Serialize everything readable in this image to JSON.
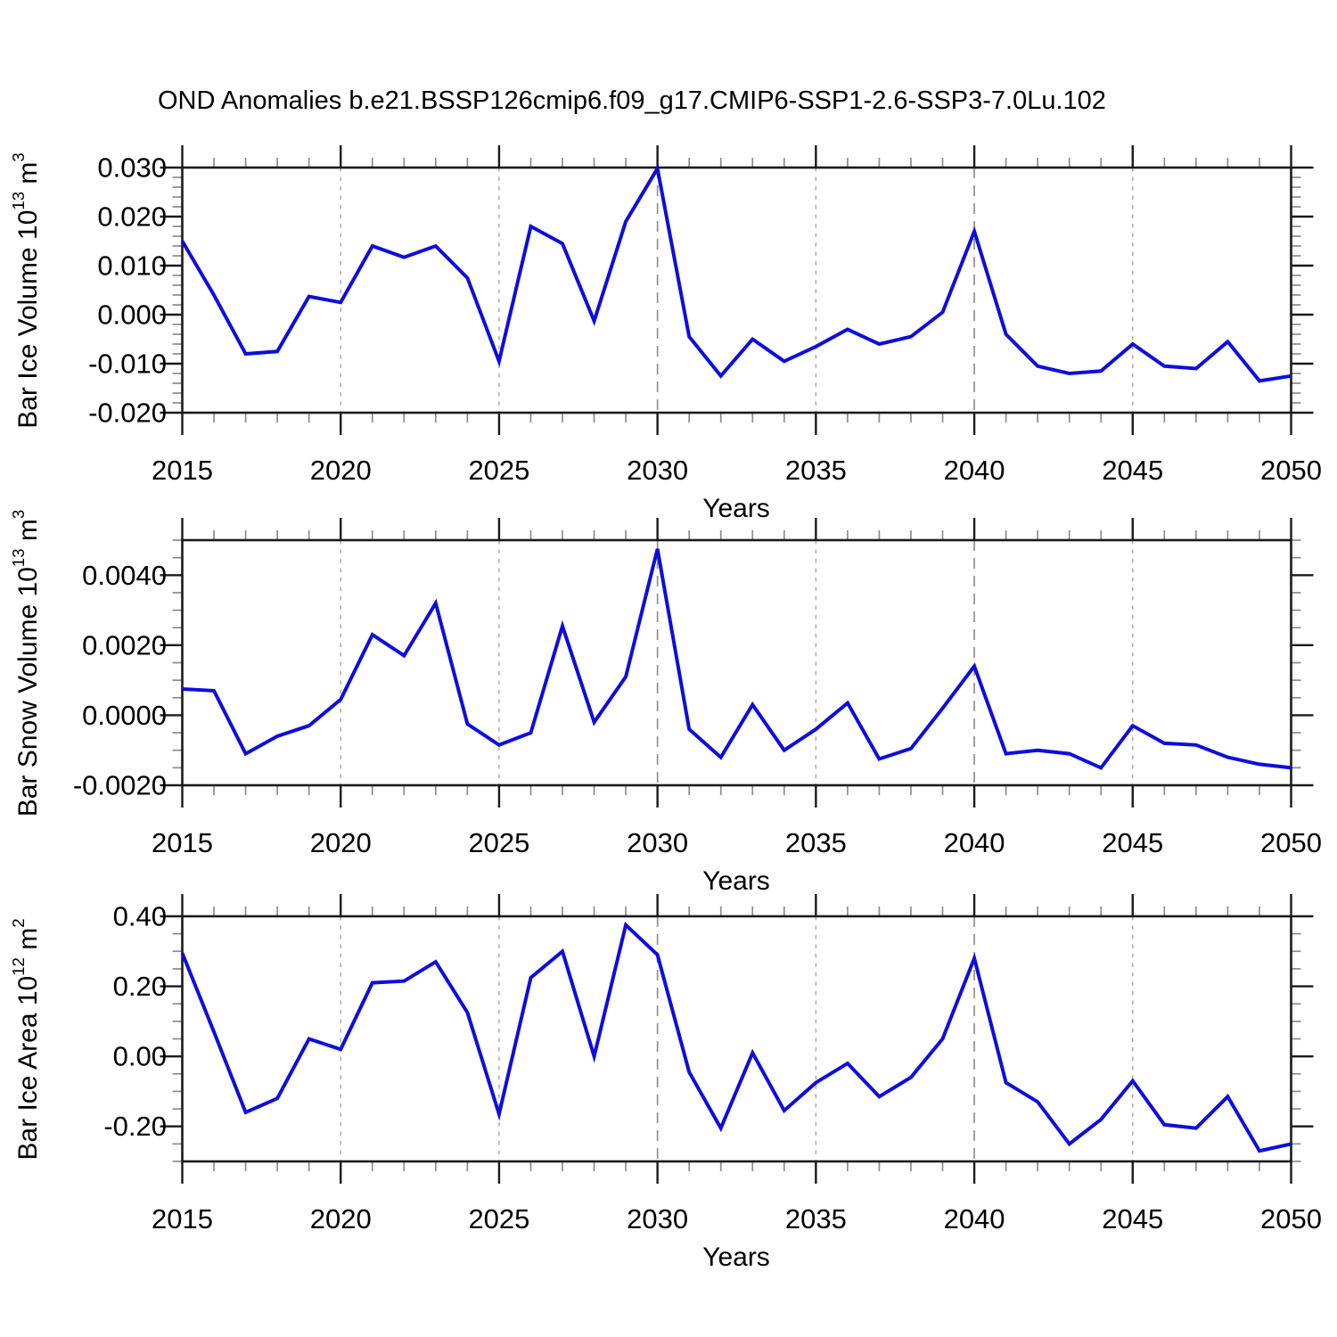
{
  "title": "OND Anomalies b.e21.BSSP126cmip6.f09_g17.CMIP6-SSP1-2.6-SSP3-7.0Lu.102",
  "colors": {
    "line": "#0d0ddf",
    "axis": "#1a1a1a",
    "minor_tick": "#8c8c8c",
    "gridline_short": "#a6a6a6",
    "gridline_long": "#8a8a8a",
    "text": "#000000",
    "background": "#ffffff"
  },
  "x_axis": {
    "label": "Years",
    "range": [
      2015,
      2050
    ],
    "minor_step": 1,
    "major_ticks": [
      {
        "value": 2015,
        "label": "2015"
      },
      {
        "value": 2020,
        "label": "2020"
      },
      {
        "value": 2025,
        "label": "2025"
      },
      {
        "value": 2030,
        "label": "2030"
      },
      {
        "value": 2035,
        "label": "2035"
      },
      {
        "value": 2040,
        "label": "2040"
      },
      {
        "value": 2045,
        "label": "2045"
      },
      {
        "value": 2050,
        "label": "2050"
      }
    ],
    "gridlines": [
      {
        "year": 2020,
        "dash": "short"
      },
      {
        "year": 2025,
        "dash": "short"
      },
      {
        "year": 2030,
        "dash": "long"
      },
      {
        "year": 2035,
        "dash": "short"
      },
      {
        "year": 2040,
        "dash": "long"
      },
      {
        "year": 2045,
        "dash": "short"
      }
    ],
    "years": [
      2015,
      2016,
      2017,
      2018,
      2019,
      2020,
      2021,
      2022,
      2023,
      2024,
      2025,
      2026,
      2027,
      2028,
      2029,
      2030,
      2031,
      2032,
      2033,
      2034,
      2035,
      2036,
      2037,
      2038,
      2039,
      2040,
      2041,
      2042,
      2043,
      2044,
      2045,
      2046,
      2047,
      2048,
      2049,
      2050
    ]
  },
  "chart_data": [
    {
      "type": "line",
      "ylabel": {
        "text": "Bar Ice Volume 10",
        "exp": "13",
        "unit": " m",
        "unit_exp": "3"
      },
      "xlabel": "Years",
      "y_box": [
        -0.02,
        0.03
      ],
      "y_minor_step": 0.002,
      "y_major_ticks": [
        {
          "value": 0.03,
          "label": "0.030"
        },
        {
          "value": 0.02,
          "label": "0.020"
        },
        {
          "value": 0.01,
          "label": "0.010"
        },
        {
          "value": 0.0,
          "label": "0.000"
        },
        {
          "value": -0.01,
          "label": "-0.010"
        },
        {
          "value": -0.02,
          "label": "-0.020"
        }
      ],
      "values": [
        0.015,
        0.004,
        -0.008,
        -0.0075,
        0.0037,
        0.0025,
        0.014,
        0.0117,
        0.014,
        0.0075,
        -0.0095,
        0.018,
        0.0145,
        -0.0013,
        0.019,
        0.0298,
        -0.0045,
        -0.0125,
        -0.005,
        -0.0095,
        -0.0065,
        -0.003,
        -0.006,
        -0.0045,
        0.0005,
        0.017,
        -0.004,
        -0.0105,
        -0.012,
        -0.0115,
        -0.006,
        -0.0105,
        -0.011,
        -0.0055,
        -0.0135,
        -0.0125
      ]
    },
    {
      "type": "line",
      "ylabel": {
        "text": "Bar Snow Volume 10",
        "exp": "13",
        "unit": " m",
        "unit_exp": "3"
      },
      "xlabel": "Years",
      "y_box": [
        -0.002,
        0.005
      ],
      "y_minor_step": 0.0005,
      "y_major_ticks": [
        {
          "value": 0.004,
          "label": "0.0040"
        },
        {
          "value": 0.002,
          "label": "0.0020"
        },
        {
          "value": 0.0,
          "label": "0.0000"
        },
        {
          "value": -0.002,
          "label": "-0.0020"
        }
      ],
      "values": [
        0.00075,
        0.0007,
        -0.0011,
        -0.0006,
        -0.0003,
        0.00045,
        0.0023,
        0.0017,
        0.0032,
        -0.00025,
        -0.00085,
        -0.0005,
        0.00255,
        -0.0002,
        0.0011,
        0.00475,
        -0.0004,
        -0.0012,
        0.0003,
        -0.001,
        -0.0004,
        0.00035,
        -0.00125,
        -0.00095,
        0.0002,
        0.0014,
        -0.0011,
        -0.001,
        -0.0011,
        -0.0015,
        -0.0003,
        -0.0008,
        -0.00085,
        -0.0012,
        -0.0014,
        -0.0015
      ]
    },
    {
      "type": "line",
      "ylabel": {
        "text": "Bar Ice Area 10",
        "exp": "12",
        "unit": " m",
        "unit_exp": "2"
      },
      "xlabel": "Years",
      "y_box": [
        -0.3,
        0.4
      ],
      "y_minor_step": 0.05,
      "y_major_ticks": [
        {
          "value": 0.4,
          "label": "0.40"
        },
        {
          "value": 0.2,
          "label": "0.20"
        },
        {
          "value": 0.0,
          "label": "0.00"
        },
        {
          "value": -0.2,
          "label": "-0.20"
        }
      ],
      "values": [
        0.295,
        0.07,
        -0.16,
        -0.12,
        0.05,
        0.02,
        0.21,
        0.215,
        0.27,
        0.125,
        -0.165,
        0.225,
        0.3,
        0.0,
        0.375,
        0.29,
        -0.045,
        -0.205,
        0.01,
        -0.155,
        -0.075,
        -0.02,
        -0.115,
        -0.06,
        0.05,
        0.28,
        -0.075,
        -0.13,
        -0.25,
        -0.18,
        -0.07,
        -0.195,
        -0.205,
        -0.115,
        -0.27,
        -0.25
      ]
    }
  ]
}
